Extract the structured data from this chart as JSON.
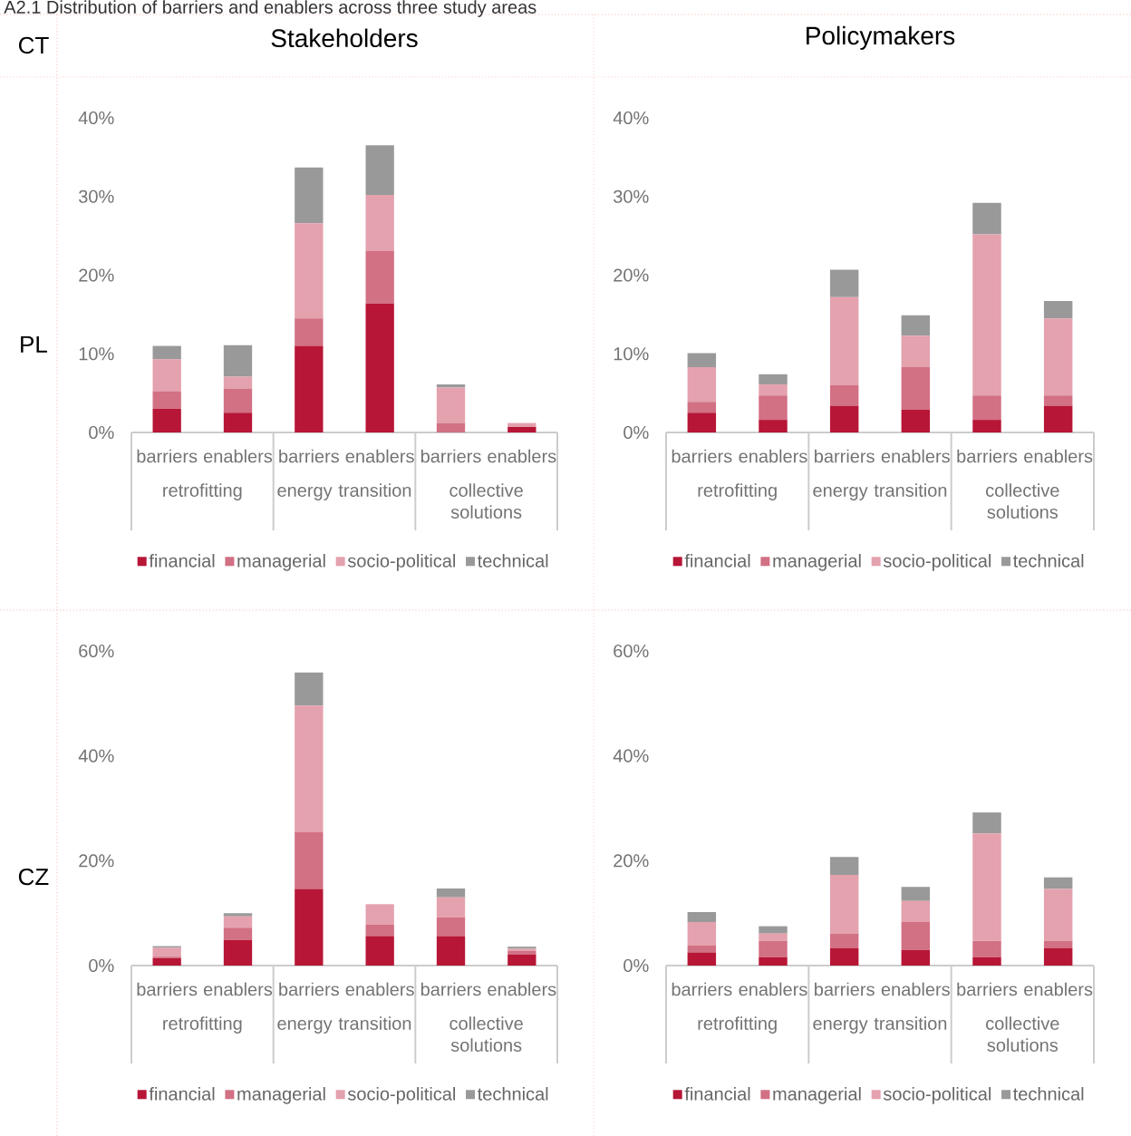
{
  "chart_data": [
    {
      "type": "other",
      "title": "A2.1 Distribution of barriers and enablers across three study areas",
      "annotations": [
        "CT"
      ]
    },
    {
      "type": "bar",
      "stacked": true,
      "title": "Stakeholders",
      "ylabel": "PL",
      "categories": [
        "barriers",
        "enablers",
        "barriers",
        "enablers",
        "barriers",
        "enablers"
      ],
      "annotations": [
        "retrofitting",
        "energy transition",
        "collective solutions"
      ],
      "legend": "bottom",
      "ylim": [
        0,
        40
      ],
      "yticks": [
        {
          "value": 0,
          "label": "0%"
        },
        {
          "value": 10,
          "label": "10%"
        },
        {
          "value": 20,
          "label": "20%"
        },
        {
          "value": 30,
          "label": "30%"
        },
        {
          "value": 40,
          "label": "40%"
        }
      ],
      "series": [
        {
          "name": "financial",
          "color": "#b71636",
          "values": [
            3.0,
            2.5,
            11.0,
            16.4,
            0,
            0.7
          ]
        },
        {
          "name": "managerial",
          "color": "#d27084",
          "values": [
            2.2,
            3.1,
            3.5,
            6.7,
            1.2,
            0
          ]
        },
        {
          "name": "socio-political",
          "color": "#e4a1ae",
          "values": [
            4.1,
            1.5,
            12.1,
            7.1,
            4.5,
            0.5
          ]
        },
        {
          "name": "technical",
          "color": "#999999",
          "values": [
            1.7,
            4.0,
            7.1,
            6.3,
            0.4,
            0
          ]
        }
      ]
    },
    {
      "type": "bar",
      "stacked": true,
      "title": "Policymakers",
      "categories": [
        "barriers",
        "enablers",
        "barriers",
        "enablers",
        "barriers",
        "enablers"
      ],
      "annotations": [
        "retrofitting",
        "energy transition",
        "collective solutions"
      ],
      "legend": "bottom",
      "ylim": [
        0,
        40
      ],
      "yticks": [
        {
          "value": 0,
          "label": "0%"
        },
        {
          "value": 10,
          "label": "10%"
        },
        {
          "value": 20,
          "label": "20%"
        },
        {
          "value": 30,
          "label": "30%"
        },
        {
          "value": 40,
          "label": "40%"
        }
      ],
      "series": [
        {
          "name": "financial",
          "color": "#b71636",
          "values": [
            2.5,
            1.6,
            3.4,
            2.9,
            1.6,
            3.4
          ]
        },
        {
          "name": "managerial",
          "color": "#d27084",
          "values": [
            1.4,
            3.1,
            2.6,
            5.4,
            3.1,
            1.3
          ]
        },
        {
          "name": "socio-political",
          "color": "#e4a1ae",
          "values": [
            4.4,
            1.4,
            11.2,
            4.0,
            20.5,
            9.8
          ]
        },
        {
          "name": "technical",
          "color": "#999999",
          "values": [
            1.8,
            1.3,
            3.5,
            2.6,
            4.0,
            2.2
          ]
        }
      ]
    },
    {
      "type": "bar",
      "stacked": true,
      "ylabel": "CZ",
      "categories": [
        "barriers",
        "enablers",
        "barriers",
        "enablers",
        "barriers",
        "enablers"
      ],
      "annotations": [
        "retrofitting",
        "energy transition",
        "collective solutions"
      ],
      "legend": "bottom",
      "ylim": [
        0,
        60
      ],
      "yticks": [
        {
          "value": 0,
          "label": "0%"
        },
        {
          "value": 20,
          "label": "20%"
        },
        {
          "value": 40,
          "label": "40%"
        },
        {
          "value": 60,
          "label": "60%"
        }
      ],
      "series": [
        {
          "name": "financial",
          "color": "#b71636",
          "values": [
            1.4,
            4.9,
            14.6,
            5.6,
            5.6,
            2.1
          ]
        },
        {
          "name": "managerial",
          "color": "#d27084",
          "values": [
            0.3,
            2.3,
            10.8,
            2.2,
            3.6,
            0.7
          ]
        },
        {
          "name": "socio-political",
          "color": "#e4a1ae",
          "values": [
            1.7,
            2.2,
            24.2,
            3.9,
            3.8,
            0.4
          ]
        },
        {
          "name": "technical",
          "color": "#999999",
          "values": [
            0.3,
            0.6,
            6.3,
            0,
            1.7,
            0.4
          ]
        }
      ]
    },
    {
      "type": "bar",
      "stacked": true,
      "categories": [
        "barriers",
        "enablers",
        "barriers",
        "enablers",
        "barriers",
        "enablers"
      ],
      "annotations": [
        "retrofitting",
        "energy transition",
        "collective solutions"
      ],
      "legend": "bottom",
      "ylim": [
        0,
        60
      ],
      "yticks": [
        {
          "value": 0,
          "label": "0%"
        },
        {
          "value": 20,
          "label": "20%"
        },
        {
          "value": 40,
          "label": "40%"
        },
        {
          "value": 60,
          "label": "60%"
        }
      ],
      "series": [
        {
          "name": "financial",
          "color": "#b71636",
          "values": [
            2.5,
            1.6,
            3.3,
            3.0,
            1.6,
            3.3
          ]
        },
        {
          "name": "managerial",
          "color": "#d27084",
          "values": [
            1.3,
            3.1,
            2.8,
            5.3,
            3.1,
            1.4
          ]
        },
        {
          "name": "socio-political",
          "color": "#e4a1ae",
          "values": [
            4.5,
            1.4,
            11.2,
            4.0,
            20.5,
            9.9
          ]
        },
        {
          "name": "technical",
          "color": "#999999",
          "values": [
            1.9,
            1.4,
            3.4,
            2.7,
            4.0,
            2.2
          ]
        }
      ]
    }
  ]
}
